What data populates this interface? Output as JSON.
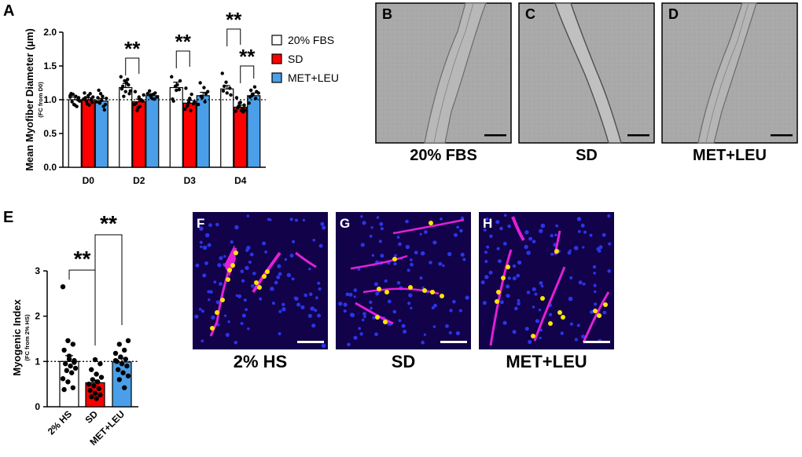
{
  "panel_letters": {
    "a": "A",
    "b": "B",
    "c": "C",
    "d": "D",
    "e": "E",
    "f": "F",
    "g": "G",
    "h": "H"
  },
  "significance_mark": "**",
  "image_captions": {
    "b": "20% FBS",
    "c": "SD",
    "d": "MET+LEU",
    "f": "2% HS",
    "g": "SD",
    "h": "MET+LEU"
  },
  "colors": {
    "fbs": "#ffffff",
    "sd": "#ff0000",
    "metleu": "#4a9fe8",
    "micrograph_bg": "#a9a9a9",
    "fluorescence_bg": "#12024a",
    "nuclei": "#2a35e8",
    "myotube": "#e021d6",
    "marker": "#ffe600"
  },
  "chart_data": [
    {
      "panel": "A",
      "type": "bar",
      "title": "",
      "ylabel": "Mean Myofiber Diameter (µm)",
      "ylabel_sub": "(FC from D0)",
      "xlabel": "",
      "categories": [
        "D0",
        "D2",
        "D3",
        "D4"
      ],
      "ylim": [
        0,
        2.0
      ],
      "yticks": [
        "0.0",
        "0.5",
        "1.0",
        "1.5",
        "2.0"
      ],
      "reference_line": 1.0,
      "legend_position": "top-right",
      "series": [
        {
          "name": "20% FBS",
          "color": "#ffffff",
          "values": [
            1.0,
            1.18,
            1.18,
            1.16
          ],
          "sem": [
            0.04,
            0.06,
            0.08,
            0.05
          ],
          "points": [
            [
              1.06,
              0.93,
              1.0,
              1.09,
              0.92,
              1.03,
              0.97,
              1.05,
              0.98,
              1.08,
              0.9,
              1.04
            ],
            [
              1.34,
              1.28,
              1.22,
              1.16,
              1.12,
              1.09,
              1.2,
              1.25,
              1.13,
              1.05,
              1.3
            ],
            [
              1.34,
              1.2,
              1.15,
              1.01,
              1.14,
              1.28,
              0.98,
              1.22
            ],
            [
              1.39,
              1.26,
              1.17,
              1.13,
              1.1,
              1.07,
              1.2
            ]
          ]
        },
        {
          "name": "SD",
          "color": "#ff0000",
          "values": [
            1.0,
            0.97,
            0.95,
            0.89
          ],
          "sem": [
            0.03,
            0.04,
            0.04,
            0.03
          ],
          "points": [
            [
              1.1,
              1.06,
              0.96,
              1.03,
              0.92,
              1.04,
              0.98,
              1.09,
              1.01,
              0.94,
              1.0
            ],
            [
              1.12,
              1.04,
              0.98,
              0.95,
              0.9,
              1.07,
              0.84,
              1.0,
              0.93,
              0.88,
              0.99
            ],
            [
              1.17,
              1.02,
              0.94,
              0.9,
              0.84,
              0.97,
              0.92,
              1.08,
              0.86,
              0.96
            ],
            [
              1.03,
              0.96,
              0.92,
              0.88,
              0.84,
              0.85,
              0.9,
              0.87,
              0.83,
              0.95,
              0.82
            ]
          ]
        },
        {
          "name": "MET+LEU",
          "color": "#4a9fe8",
          "values": [
            0.98,
            1.06,
            1.06,
            1.06
          ],
          "sem": [
            0.04,
            0.03,
            0.05,
            0.04
          ],
          "points": [
            [
              1.14,
              1.05,
              1.02,
              0.95,
              0.9,
              0.97,
              1.09,
              0.85,
              1.03,
              0.99,
              0.93
            ],
            [
              1.13,
              1.08,
              1.04,
              1.06,
              1.01,
              1.09,
              1.03,
              1.1
            ],
            [
              1.25,
              1.18,
              1.12,
              1.05,
              0.97,
              0.93,
              1.03,
              1.09
            ],
            [
              1.14,
              1.19,
              1.1,
              1.06,
              1.02,
              0.95,
              1.08,
              1.12,
              1.04
            ]
          ]
        }
      ],
      "significance": [
        {
          "category": "D2",
          "from": "20% FBS",
          "to": "SD",
          "label": "**"
        },
        {
          "category": "D3",
          "from": "20% FBS",
          "to": "SD",
          "label": "**"
        },
        {
          "category": "D4",
          "from": "20% FBS",
          "to": "SD",
          "label": "**"
        },
        {
          "category": "D4",
          "from": "SD",
          "to": "MET+LEU",
          "label": "**"
        }
      ]
    },
    {
      "panel": "E",
      "type": "bar",
      "title": "",
      "ylabel": "Myogenic Index",
      "ylabel_sub": "(FC from 2% HS)",
      "xlabel": "",
      "categories": [
        "2% HS",
        "SD",
        "MET+LEU"
      ],
      "ylim": [
        0,
        3
      ],
      "yticks": [
        "0",
        "1",
        "2",
        "3"
      ],
      "reference_line": 1.0,
      "values": [
        1.0,
        0.53,
        0.99
      ],
      "sem": [
        0.13,
        0.06,
        0.08
      ],
      "colors": [
        "#ffffff",
        "#ff0000",
        "#4a9fe8"
      ],
      "points": [
        [
          2.65,
          1.46,
          1.38,
          1.25,
          1.12,
          1.02,
          0.95,
          0.9,
          0.85,
          0.8,
          0.75,
          0.62,
          0.55,
          0.42,
          0.38,
          1.05,
          0.98
        ],
        [
          1.04,
          0.95,
          0.82,
          0.72,
          0.65,
          0.6,
          0.55,
          0.5,
          0.46,
          0.4,
          0.36,
          0.3,
          0.26,
          0.22,
          0.18
        ],
        [
          1.46,
          1.38,
          1.25,
          1.18,
          1.1,
          1.05,
          1.0,
          0.95,
          0.9,
          0.82,
          0.75,
          0.68,
          0.6,
          0.42,
          1.02
        ]
      ],
      "significance": [
        {
          "from": "2% HS",
          "to": "SD",
          "label": "**"
        },
        {
          "from": "SD",
          "to": "MET+LEU",
          "label": "**"
        }
      ]
    }
  ]
}
